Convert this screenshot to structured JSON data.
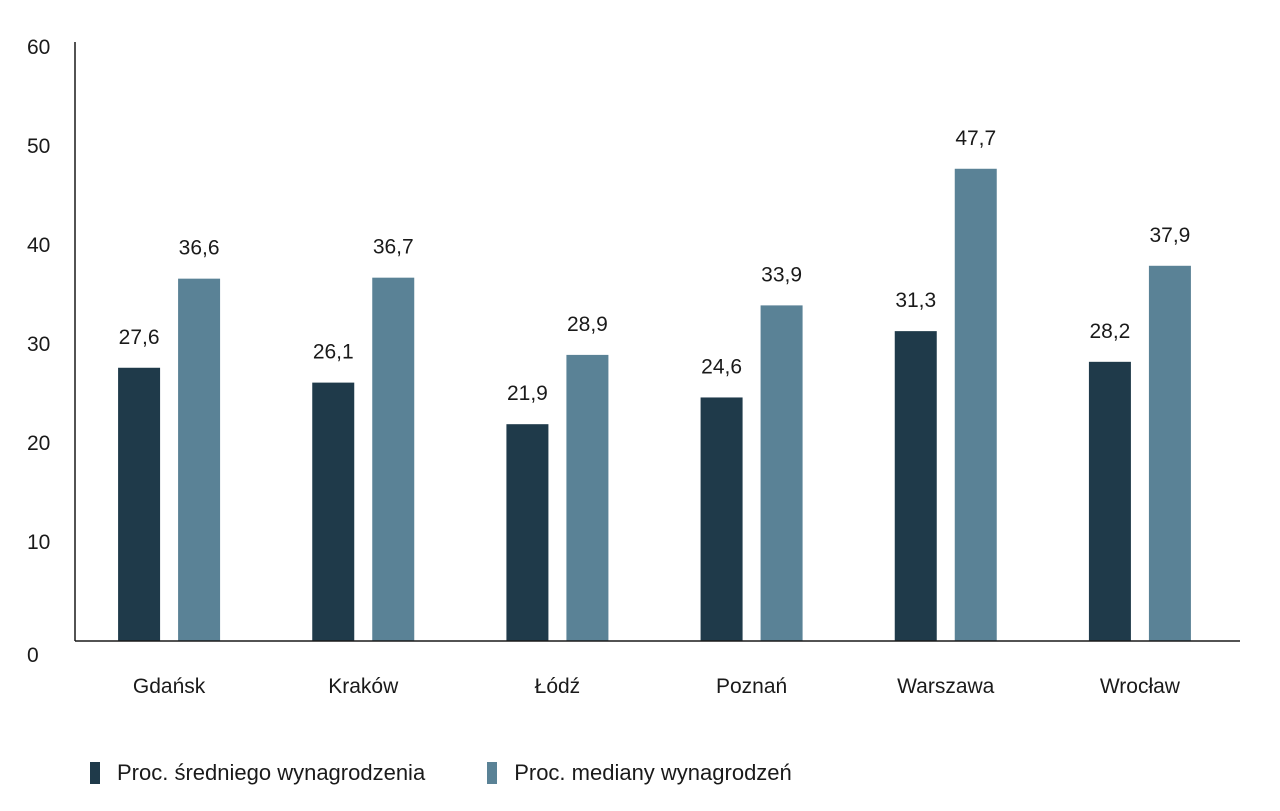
{
  "colors": {
    "series_0": "#1f3a4a",
    "series_1": "#5a8296",
    "axis": "#1a1a1a"
  },
  "legend": {
    "items": [
      {
        "label": "Proc. średniego wynagrodzenia"
      },
      {
        "label": "Proc. mediany wynagrodzeń"
      }
    ]
  },
  "chart_data": {
    "type": "bar",
    "title": "",
    "xlabel": "",
    "ylabel": "",
    "categories": [
      "Gdańsk",
      "Kraków",
      "Łódź",
      "Poznań",
      "Warszawa",
      "Wrocław"
    ],
    "series": [
      {
        "name": "Proc. średniego wynagrodzenia",
        "values": [
          27.6,
          26.1,
          21.9,
          24.6,
          31.3,
          28.2
        ],
        "labels": [
          "27,6",
          "26,1",
          "21,9",
          "24,6",
          "31,3",
          "28,2"
        ]
      },
      {
        "name": "Proc. mediany wynagrodzeń",
        "values": [
          36.6,
          36.7,
          28.9,
          33.9,
          47.7,
          37.9
        ],
        "labels": [
          "36,6",
          "36,7",
          "28,9",
          "33,9",
          "47,7",
          "37,9"
        ]
      }
    ],
    "ylim": [
      0,
      60
    ],
    "yticks": [
      0,
      10,
      20,
      30,
      40,
      50,
      60
    ],
    "ytick_labels": [
      "0",
      "10",
      "20",
      "30",
      "40",
      "50",
      "60"
    ],
    "grid": false,
    "legend_position": "bottom-left"
  }
}
